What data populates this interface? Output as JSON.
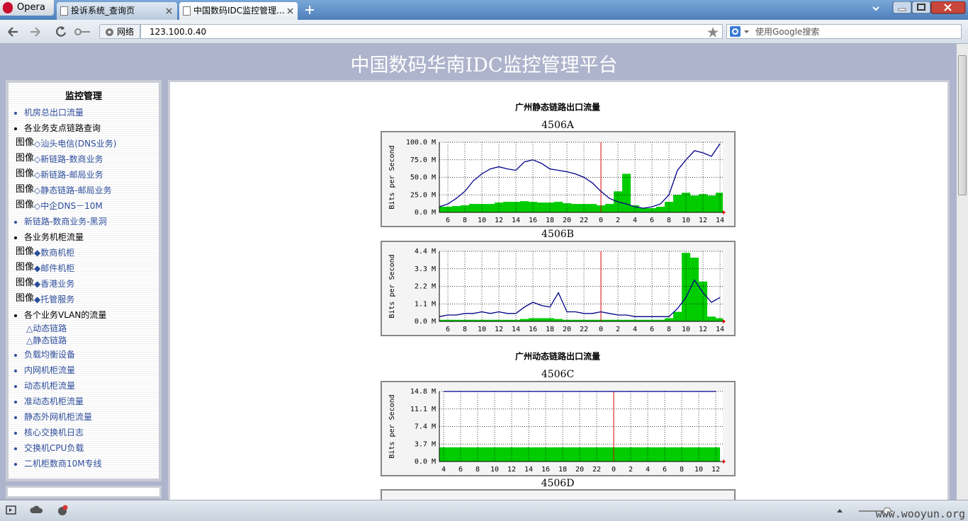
{
  "browser": {
    "app": "Opera",
    "tabs": [
      "投诉系统_查询页",
      "中国数码IDC监控管理..."
    ],
    "security": "网络",
    "address": "123.100.0.40",
    "search": "使用Google搜索"
  },
  "header": {
    "title": "中国数码华南IDC监控管理平台"
  },
  "sidebar": {
    "title": "监控管理",
    "items": [
      {
        "style": "link",
        "text": "机房总出口流量"
      },
      {
        "style": "heading",
        "text": "各业务支点链路查询"
      },
      {
        "style": "image",
        "alt": "图像",
        "text": "◇汕头电信(DNS业务)"
      },
      {
        "style": "image",
        "alt": "图像",
        "text": "◇新链路-数商业务"
      },
      {
        "style": "image",
        "alt": "图像",
        "text": "◇新链路-邮局业务"
      },
      {
        "style": "image",
        "alt": "图像",
        "text": "◇静态链路-邮局业务"
      },
      {
        "style": "image",
        "alt": "图像",
        "text": "◇中企DNS－10M"
      },
      {
        "style": "link",
        "text": "新链路-数商业务-黑洞"
      },
      {
        "style": "heading",
        "text": "各业务机柜流量"
      },
      {
        "style": "image",
        "alt": "图像",
        "text": "◆数商机柜"
      },
      {
        "style": "image",
        "alt": "图像",
        "text": "◆邮件机柜"
      },
      {
        "style": "image",
        "alt": "图像",
        "text": "◆香港业务"
      },
      {
        "style": "image",
        "alt": "图像",
        "text": "◆托管服务"
      },
      {
        "style": "heading",
        "text": "各个业务VLAN的流量"
      },
      {
        "style": "sub",
        "text": "△动态链路"
      },
      {
        "style": "sub",
        "text": "△静态链路"
      },
      {
        "style": "link",
        "text": "负载均衡设备"
      },
      {
        "style": "link",
        "text": "内网机柜流量"
      },
      {
        "style": "link",
        "text": "动态机柜流量"
      },
      {
        "style": "link",
        "text": "准动态机柜流量"
      },
      {
        "style": "link",
        "text": "静态外网机柜流量"
      },
      {
        "style": "link",
        "text": "核心交换机日志"
      },
      {
        "style": "link",
        "text": "交换机CPU负载"
      },
      {
        "style": "link",
        "text": "二机柜数商10M专线"
      }
    ]
  },
  "sections": [
    "广州静态链路出口流量",
    "广州动态链路出口流量"
  ],
  "chart_data": [
    {
      "type": "line",
      "title": "4506A",
      "y_label": "Bits per Second",
      "x": [
        5,
        6,
        7,
        8,
        9,
        10,
        11,
        12,
        13,
        14,
        15,
        16,
        17,
        18,
        19,
        20,
        21,
        22,
        23,
        24,
        25,
        26,
        27,
        28,
        29,
        30,
        31,
        32,
        33,
        34,
        35,
        36,
        37,
        38
      ],
      "series": [
        {
          "color": "#00cc00",
          "style": "area",
          "values": [
            8,
            8,
            9,
            10,
            12,
            12,
            12,
            14,
            15,
            15,
            16,
            15,
            14,
            14,
            15,
            13,
            12,
            12,
            12,
            10,
            12,
            30,
            55,
            10,
            6,
            6,
            8,
            15,
            25,
            28,
            24,
            26,
            24,
            28
          ]
        },
        {
          "color": "#000088",
          "style": "line",
          "values": [
            8,
            12,
            20,
            30,
            45,
            55,
            62,
            65,
            62,
            60,
            72,
            75,
            70,
            62,
            60,
            58,
            55,
            50,
            42,
            30,
            20,
            15,
            12,
            8,
            6,
            8,
            12,
            25,
            60,
            75,
            88,
            85,
            80,
            98
          ]
        }
      ],
      "xlim": [
        5,
        38.33
      ],
      "xticks": [
        6,
        8,
        10,
        12,
        14,
        16,
        18,
        20,
        22,
        {
          "value": 24,
          "label": "0"
        },
        {
          "value": 26,
          "label": "2"
        },
        {
          "value": 28,
          "label": "4"
        },
        {
          "value": 30,
          "label": "6"
        },
        {
          "value": 32,
          "label": "8"
        },
        {
          "value": 34,
          "label": "10"
        },
        {
          "value": 36,
          "label": "12"
        },
        {
          "value": 38,
          "label": "14"
        }
      ],
      "ylim": [
        0,
        100
      ],
      "yticks": [
        {
          "value": 0,
          "label": "0.0 M"
        },
        {
          "value": 25,
          "label": "25.0 M"
        },
        {
          "value": 50,
          "label": "50.0 M"
        },
        {
          "value": 75,
          "label": "75.0 M"
        },
        {
          "value": 100,
          "label": "100.0 M"
        }
      ],
      "grid": true
    },
    {
      "type": "line",
      "title": "4506B",
      "y_label": "Bits per Second",
      "x": [
        5,
        6,
        7,
        8,
        9,
        10,
        11,
        12,
        13,
        14,
        15,
        16,
        17,
        18,
        19,
        20,
        21,
        22,
        23,
        24,
        25,
        26,
        27,
        28,
        29,
        30,
        31,
        32,
        33,
        34,
        35,
        36,
        37,
        38
      ],
      "series": [
        {
          "color": "#00cc00",
          "style": "area",
          "values": [
            0.1,
            0.1,
            0.1,
            0.1,
            0.1,
            0.1,
            0.1,
            0.1,
            0.1,
            0.1,
            0.15,
            0.2,
            0.2,
            0.2,
            0.15,
            0.1,
            0.1,
            0.1,
            0.1,
            0.1,
            0.1,
            0.1,
            0.1,
            0.1,
            0.1,
            0.1,
            0.1,
            0.2,
            0.6,
            4.3,
            4.0,
            2.5,
            0.3,
            0.2
          ]
        },
        {
          "color": "#000088",
          "style": "line",
          "values": [
            0.3,
            0.4,
            0.4,
            0.5,
            0.5,
            0.6,
            0.5,
            0.6,
            0.5,
            0.5,
            0.9,
            1.2,
            1.0,
            0.9,
            1.8,
            0.6,
            0.6,
            0.5,
            0.5,
            0.6,
            0.5,
            0.4,
            0.4,
            0.3,
            0.3,
            0.3,
            0.3,
            0.3,
            0.8,
            1.5,
            2.6,
            1.8,
            1.2,
            1.5
          ]
        }
      ],
      "xlim": [
        5,
        38.33
      ],
      "xticks": [
        6,
        8,
        10,
        12,
        14,
        16,
        18,
        20,
        22,
        {
          "value": 24,
          "label": "0"
        },
        {
          "value": 26,
          "label": "2"
        },
        {
          "value": 28,
          "label": "4"
        },
        {
          "value": 30,
          "label": "6"
        },
        {
          "value": 32,
          "label": "8"
        },
        {
          "value": 34,
          "label": "10"
        },
        {
          "value": 36,
          "label": "12"
        },
        {
          "value": 38,
          "label": "14"
        }
      ],
      "ylim": [
        0,
        4.4
      ],
      "yticks": [
        {
          "value": 0,
          "label": "0.0 M"
        },
        {
          "value": 1.1,
          "label": "1.1 M"
        },
        {
          "value": 2.2,
          "label": "2.2 M"
        },
        {
          "value": 3.3,
          "label": "3.3 M"
        },
        {
          "value": 4.4,
          "label": "4.4 M"
        }
      ],
      "grid": true
    },
    {
      "type": "line",
      "title": "4506C",
      "y_label": "Bits per Second",
      "x": [
        4,
        5,
        6,
        7,
        8,
        9,
        10,
        11,
        12,
        13,
        14,
        15,
        16,
        17,
        18,
        19,
        20,
        21,
        22,
        23,
        24,
        25,
        26,
        27,
        28,
        29,
        30,
        31,
        32,
        33,
        34,
        35,
        36
      ],
      "series": [
        {
          "color": "#00cc00",
          "style": "area",
          "values": [
            3,
            3,
            3,
            3,
            3,
            3,
            3,
            3,
            3,
            3,
            3,
            3,
            3,
            3,
            3,
            3,
            3,
            3,
            3,
            3,
            3,
            3,
            3,
            3,
            3,
            3,
            3,
            3,
            3,
            3,
            3,
            3,
            3
          ]
        },
        {
          "color": "#000088",
          "style": "line",
          "values": [
            14.8,
            14.8,
            14.8,
            14.8,
            14.8,
            14.8,
            14.8,
            14.8,
            14.8,
            14.8,
            14.8,
            14.8,
            14.8,
            14.8,
            14.8,
            14.8,
            14.8,
            14.8,
            14.8,
            14.8,
            14.8,
            14.8,
            14.8,
            14.8,
            14.8,
            14.8,
            14.8,
            14.8,
            14.8,
            14.8,
            14.8,
            14.8,
            14.8
          ]
        }
      ],
      "xlim": [
        3.5,
        36.83
      ],
      "xticks": [
        4,
        6,
        8,
        10,
        12,
        14,
        16,
        18,
        20,
        22,
        {
          "value": 24,
          "label": "0"
        },
        {
          "value": 26,
          "label": "2"
        },
        {
          "value": 28,
          "label": "4"
        },
        {
          "value": 30,
          "label": "6"
        },
        {
          "value": 32,
          "label": "8"
        },
        {
          "value": 34,
          "label": "10"
        },
        {
          "value": 36,
          "label": "12"
        }
      ],
      "ylim": [
        0,
        14.8
      ],
      "yticks": [
        {
          "value": 0,
          "label": "0.0 M"
        },
        {
          "value": 3.7,
          "label": "3.7 M"
        },
        {
          "value": 7.4,
          "label": "7.4 M"
        },
        {
          "value": 11.1,
          "label": "11.1 M"
        },
        {
          "value": 14.8,
          "label": "14.8 M"
        }
      ],
      "grid": true
    },
    {
      "type": "line",
      "title": "4506D"
    }
  ],
  "watermark": "www.wooyun.org"
}
